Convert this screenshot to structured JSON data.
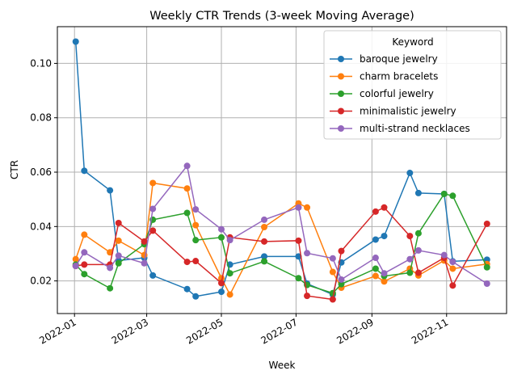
{
  "chart_data": {
    "type": "line",
    "title": "Weekly CTR Trends (3-week Moving Average)",
    "xlabel": "Week",
    "ylabel": "CTR",
    "x_axis_type": "date",
    "xlim": [
      "2021-12-18",
      "2022-12-20"
    ],
    "ylim": [
      0.008,
      0.1135
    ],
    "x_ticks": [
      {
        "date": "2022-01-01",
        "label": "2022-01"
      },
      {
        "date": "2022-03-01",
        "label": "2022-03"
      },
      {
        "date": "2022-05-01",
        "label": "2022-05"
      },
      {
        "date": "2022-07-01",
        "label": "2022-07"
      },
      {
        "date": "2022-09-01",
        "label": "2022-09"
      },
      {
        "date": "2022-11-01",
        "label": "2022-11"
      }
    ],
    "y_ticks": [
      {
        "value": 0.02,
        "label": "0.02"
      },
      {
        "value": 0.04,
        "label": "0.04"
      },
      {
        "value": 0.06,
        "label": "0.06"
      },
      {
        "value": 0.08,
        "label": "0.08"
      },
      {
        "value": 0.1,
        "label": "0.10"
      }
    ],
    "grid": true,
    "legend": {
      "title": "Keyword",
      "position": "top-right"
    },
    "series": [
      {
        "name": "baroque jewelry",
        "color": "#1f77b4",
        "points": [
          [
            "2022-01-02",
            0.108
          ],
          [
            "2022-01-09",
            0.0605
          ],
          [
            "2022-01-30",
            0.0533
          ],
          [
            "2022-02-06",
            0.0275
          ],
          [
            "2022-02-27",
            0.0285
          ],
          [
            "2022-03-06",
            0.022
          ],
          [
            "2022-04-03",
            0.017
          ],
          [
            "2022-04-10",
            0.0143
          ],
          [
            "2022-05-01",
            0.016
          ],
          [
            "2022-05-08",
            0.026
          ],
          [
            "2022-06-05",
            0.029
          ],
          [
            "2022-07-03",
            0.029
          ],
          [
            "2022-07-10",
            0.019
          ],
          [
            "2022-07-31",
            0.015
          ],
          [
            "2022-08-07",
            0.0268
          ],
          [
            "2022-09-04",
            0.0352
          ],
          [
            "2022-09-11",
            0.0365
          ],
          [
            "2022-10-02",
            0.0597
          ],
          [
            "2022-10-09",
            0.0523
          ],
          [
            "2022-10-30",
            0.052
          ],
          [
            "2022-11-06",
            0.0272
          ],
          [
            "2022-12-04",
            0.0278
          ]
        ]
      },
      {
        "name": "charm bracelets",
        "color": "#ff7f0e",
        "points": [
          [
            "2022-01-02",
            0.028
          ],
          [
            "2022-01-09",
            0.037
          ],
          [
            "2022-01-30",
            0.0305
          ],
          [
            "2022-02-06",
            0.0348
          ],
          [
            "2022-02-27",
            0.0295
          ],
          [
            "2022-03-06",
            0.056
          ],
          [
            "2022-04-03",
            0.054
          ],
          [
            "2022-04-10",
            0.0405
          ],
          [
            "2022-05-01",
            0.021
          ],
          [
            "2022-05-08",
            0.015
          ],
          [
            "2022-06-05",
            0.0398
          ],
          [
            "2022-07-03",
            0.0485
          ],
          [
            "2022-07-10",
            0.047
          ],
          [
            "2022-07-31",
            0.0233
          ],
          [
            "2022-08-07",
            0.0175
          ],
          [
            "2022-09-04",
            0.0218
          ],
          [
            "2022-09-11",
            0.0198
          ],
          [
            "2022-10-02",
            0.0245
          ],
          [
            "2022-10-09",
            0.022
          ],
          [
            "2022-10-30",
            0.0275
          ],
          [
            "2022-11-06",
            0.0245
          ],
          [
            "2022-12-04",
            0.0262
          ]
        ]
      },
      {
        "name": "colorful jewelry",
        "color": "#2ca02c",
        "points": [
          [
            "2022-01-02",
            0.026
          ],
          [
            "2022-01-09",
            0.0225
          ],
          [
            "2022-01-30",
            0.0173
          ],
          [
            "2022-02-06",
            0.0265
          ],
          [
            "2022-02-27",
            0.0335
          ],
          [
            "2022-03-06",
            0.0425
          ],
          [
            "2022-04-03",
            0.045
          ],
          [
            "2022-04-10",
            0.035
          ],
          [
            "2022-05-01",
            0.036
          ],
          [
            "2022-05-08",
            0.0228
          ],
          [
            "2022-06-05",
            0.0272
          ],
          [
            "2022-07-03",
            0.021
          ],
          [
            "2022-07-10",
            0.0185
          ],
          [
            "2022-07-31",
            0.0155
          ],
          [
            "2022-08-07",
            0.0188
          ],
          [
            "2022-09-04",
            0.0245
          ],
          [
            "2022-09-11",
            0.0218
          ],
          [
            "2022-10-02",
            0.023
          ],
          [
            "2022-10-09",
            0.0375
          ],
          [
            "2022-10-30",
            0.052
          ],
          [
            "2022-11-06",
            0.0513
          ],
          [
            "2022-12-04",
            0.025
          ]
        ]
      },
      {
        "name": "minimalistic jewelry",
        "color": "#d62728",
        "points": [
          [
            "2022-01-02",
            0.0255
          ],
          [
            "2022-01-09",
            0.026
          ],
          [
            "2022-01-30",
            0.026
          ],
          [
            "2022-02-06",
            0.0413
          ],
          [
            "2022-02-27",
            0.0345
          ],
          [
            "2022-03-06",
            0.0385
          ],
          [
            "2022-04-03",
            0.027
          ],
          [
            "2022-04-10",
            0.0273
          ],
          [
            "2022-05-01",
            0.0192
          ],
          [
            "2022-05-08",
            0.036
          ],
          [
            "2022-06-05",
            0.0345
          ],
          [
            "2022-07-03",
            0.0348
          ],
          [
            "2022-07-10",
            0.0145
          ],
          [
            "2022-07-31",
            0.0132
          ],
          [
            "2022-08-07",
            0.031
          ],
          [
            "2022-09-04",
            0.0455
          ],
          [
            "2022-09-11",
            0.047
          ],
          [
            "2022-10-02",
            0.0365
          ],
          [
            "2022-10-09",
            0.023
          ],
          [
            "2022-10-30",
            0.0285
          ],
          [
            "2022-11-06",
            0.0183
          ],
          [
            "2022-12-04",
            0.041
          ]
        ]
      },
      {
        "name": "multi-strand necklaces",
        "color": "#9467bd",
        "points": [
          [
            "2022-01-02",
            0.0255
          ],
          [
            "2022-01-09",
            0.0305
          ],
          [
            "2022-01-30",
            0.0248
          ],
          [
            "2022-02-06",
            0.0293
          ],
          [
            "2022-02-27",
            0.0265
          ],
          [
            "2022-03-06",
            0.0465
          ],
          [
            "2022-04-03",
            0.0623
          ],
          [
            "2022-04-10",
            0.0463
          ],
          [
            "2022-05-01",
            0.039
          ],
          [
            "2022-05-08",
            0.035
          ],
          [
            "2022-06-05",
            0.0425
          ],
          [
            "2022-07-03",
            0.047
          ],
          [
            "2022-07-10",
            0.0302
          ],
          [
            "2022-07-31",
            0.0283
          ],
          [
            "2022-08-07",
            0.0205
          ],
          [
            "2022-09-04",
            0.0285
          ],
          [
            "2022-09-11",
            0.0228
          ],
          [
            "2022-10-02",
            0.028
          ],
          [
            "2022-10-09",
            0.0312
          ],
          [
            "2022-10-30",
            0.0295
          ],
          [
            "2022-11-06",
            0.027
          ],
          [
            "2022-12-04",
            0.019
          ]
        ]
      }
    ]
  }
}
